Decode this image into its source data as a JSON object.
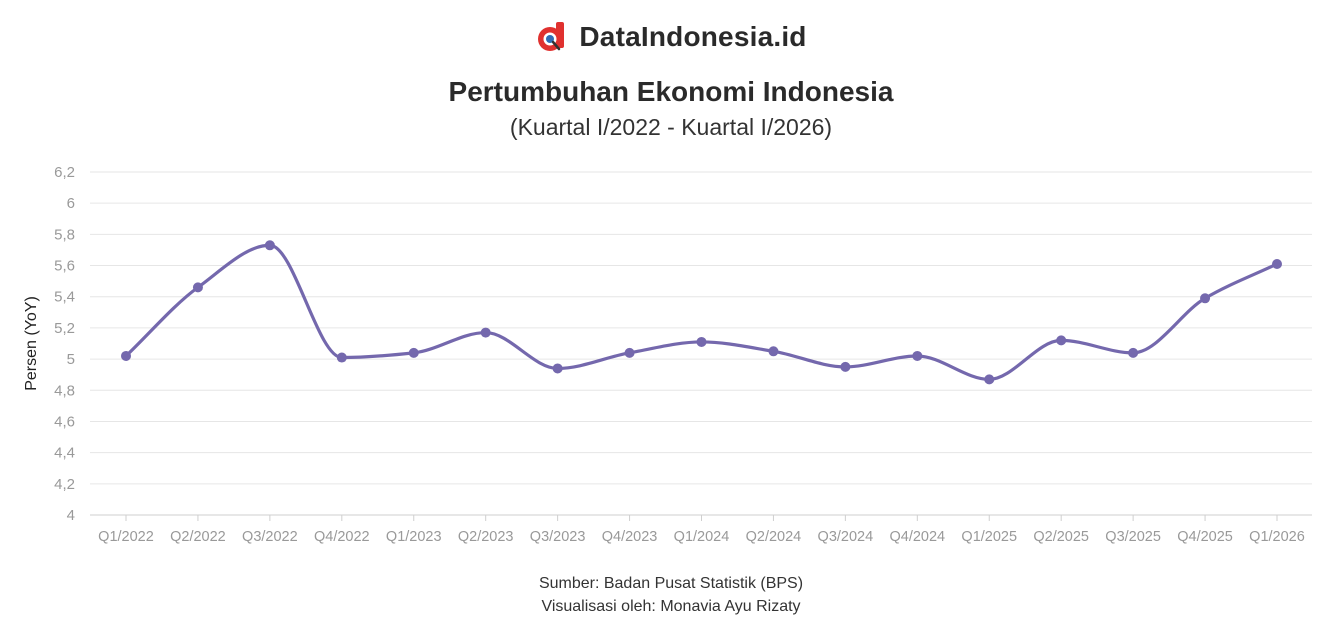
{
  "brand": {
    "name": "DataIndonesia.id",
    "icon": "dataindonesia-logo-icon",
    "logo_color": "#e0312f"
  },
  "title": "Pertumbuhan Ekonomi Indonesia",
  "subtitle": "(Kuartal I/2022 - Kuartal I/2026)",
  "footer": {
    "source": "Sumber: Badan Pusat Statistik (BPS)",
    "credit": "Visualisasi oleh: Monavia Ayu Rizaty"
  },
  "chart_data": {
    "type": "line",
    "ylabel": "Persen (YoY)",
    "xlabel": "",
    "ylim": [
      4,
      6.2
    ],
    "yticks": [
      "4",
      "4,2",
      "4,4",
      "4,6",
      "4,8",
      "5",
      "5,2",
      "5,4",
      "5,6",
      "5,8",
      "6",
      "6,2"
    ],
    "grid": true,
    "legend": "none",
    "line_color": "#7468ad",
    "categories": [
      "Q1/2022",
      "Q2/2022",
      "Q3/2022",
      "Q4/2022",
      "Q1/2023",
      "Q2/2023",
      "Q3/2023",
      "Q4/2023",
      "Q1/2024",
      "Q2/2024",
      "Q3/2024",
      "Q4/2024",
      "Q1/2025",
      "Q2/2025",
      "Q3/2025",
      "Q4/2025",
      "Q1/2026"
    ],
    "series": [
      {
        "values": [
          5.02,
          5.46,
          5.73,
          5.01,
          5.04,
          5.17,
          4.94,
          5.04,
          5.11,
          5.05,
          4.95,
          5.02,
          4.87,
          5.12,
          5.04,
          5.39,
          5.61
        ]
      }
    ]
  }
}
